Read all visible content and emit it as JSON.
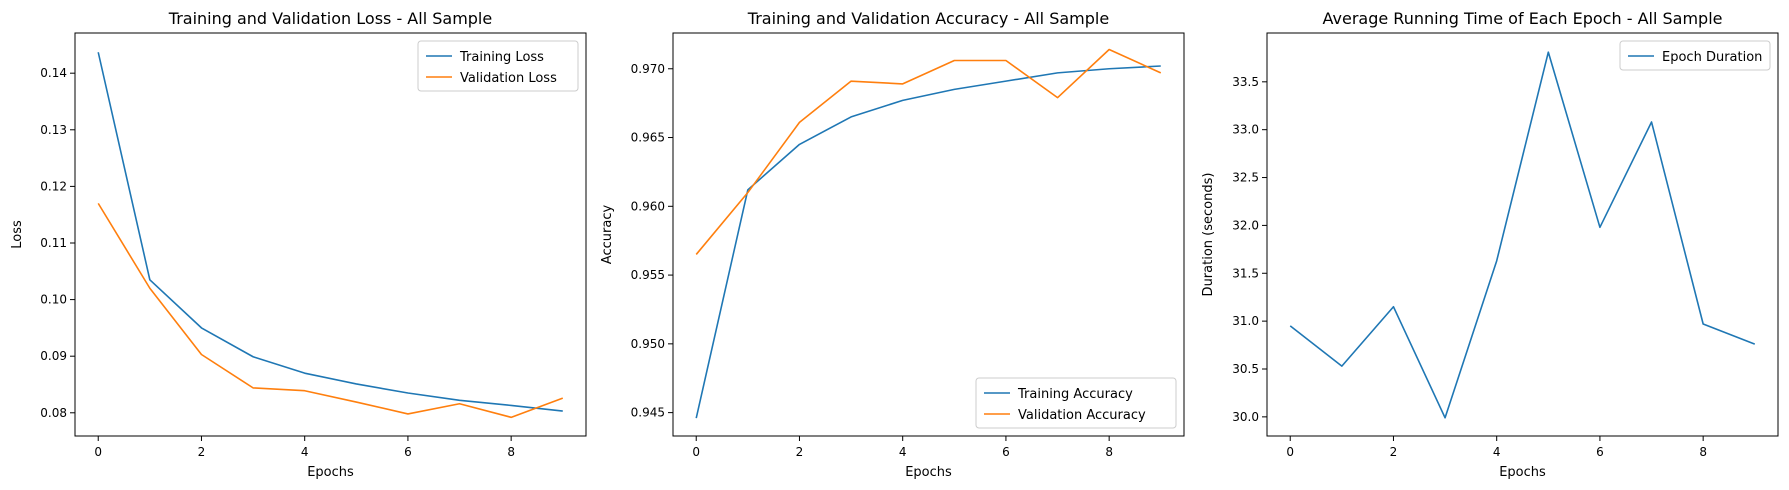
{
  "chart_data": [
    {
      "type": "line",
      "title": "Training and Validation Loss - All Sample",
      "xlabel": "Epochs",
      "ylabel": "Loss",
      "x": [
        0,
        1,
        2,
        3,
        4,
        5,
        6,
        7,
        8,
        9
      ],
      "xlim": [
        -0.45,
        9.45
      ],
      "ylim": [
        0.0759,
        0.1471
      ],
      "xticks": [
        0,
        2,
        4,
        6,
        8
      ],
      "yticks": [
        0.08,
        0.09,
        0.1,
        0.11,
        0.12,
        0.13,
        0.14
      ],
      "ytick_labels": [
        "0.08",
        "0.09",
        "0.10",
        "0.11",
        "0.12",
        "0.13",
        "0.14"
      ],
      "legend": "top-right",
      "grid": false,
      "series": [
        {
          "name": "Training Loss",
          "color": "#1f77b4",
          "values": [
            0.1437,
            0.1035,
            0.095,
            0.0899,
            0.087,
            0.0851,
            0.0835,
            0.0822,
            0.0813,
            0.0803
          ]
        },
        {
          "name": "Validation Loss",
          "color": "#ff7f0e",
          "values": [
            0.117,
            0.102,
            0.0903,
            0.0844,
            0.0839,
            0.0819,
            0.0798,
            0.0816,
            0.0792,
            0.0826
          ]
        }
      ]
    },
    {
      "type": "line",
      "title": "Training and Validation Accuracy - All Sample",
      "xlabel": "Epochs",
      "ylabel": "Accuracy",
      "x": [
        0,
        1,
        2,
        3,
        4,
        5,
        6,
        7,
        8,
        9
      ],
      "xlim": [
        -0.45,
        9.45
      ],
      "ylim": [
        0.9433,
        0.9726
      ],
      "xticks": [
        0,
        2,
        4,
        6,
        8
      ],
      "yticks": [
        0.945,
        0.95,
        0.955,
        0.96,
        0.965,
        0.97
      ],
      "ytick_labels": [
        "0.945",
        "0.950",
        "0.955",
        "0.960",
        "0.965",
        "0.970"
      ],
      "legend": "bottom-right",
      "grid": false,
      "series": [
        {
          "name": "Training Accuracy",
          "color": "#1f77b4",
          "values": [
            0.9446,
            0.9612,
            0.9645,
            0.9665,
            0.9677,
            0.9685,
            0.9691,
            0.9697,
            0.97,
            0.9702
          ]
        },
        {
          "name": "Validation Accuracy",
          "color": "#ff7f0e",
          "values": [
            0.9565,
            0.961,
            0.9661,
            0.9691,
            0.9689,
            0.9706,
            0.9706,
            0.9679,
            0.9714,
            0.9697
          ]
        }
      ]
    },
    {
      "type": "line",
      "title": "Average Running Time of Each Epoch - All Sample",
      "xlabel": "Epochs",
      "ylabel": "Duration (seconds)",
      "x": [
        0,
        1,
        2,
        3,
        4,
        5,
        6,
        7,
        8,
        9
      ],
      "xlim": [
        -0.45,
        9.45
      ],
      "ylim": [
        29.8,
        34.01
      ],
      "xticks": [
        0,
        2,
        4,
        6,
        8
      ],
      "yticks": [
        30.0,
        30.5,
        31.0,
        31.5,
        32.0,
        32.5,
        33.0,
        33.5
      ],
      "ytick_labels": [
        "30.0",
        "30.5",
        "31.0",
        "31.5",
        "32.0",
        "32.5",
        "33.0",
        "33.5"
      ],
      "legend": "top-right",
      "grid": false,
      "series": [
        {
          "name": "Epoch Duration",
          "color": "#1f77b4",
          "values": [
            30.95,
            30.53,
            31.15,
            29.99,
            31.63,
            33.81,
            31.98,
            33.08,
            30.97,
            30.76
          ]
        }
      ]
    }
  ]
}
